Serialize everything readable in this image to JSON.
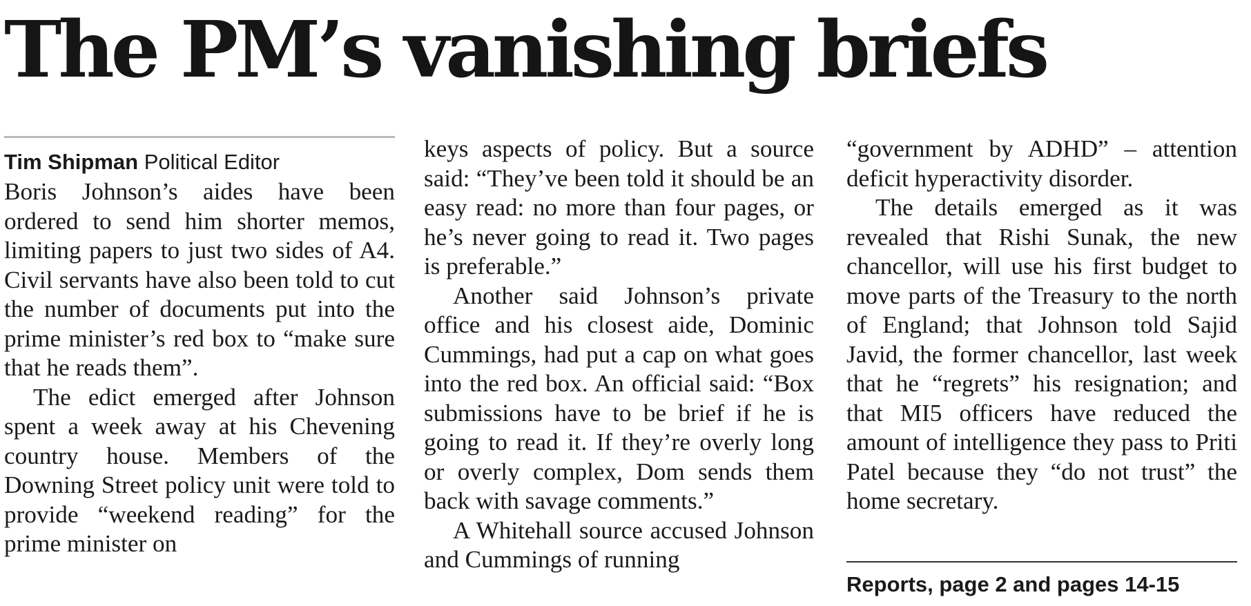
{
  "article": {
    "headline": "The PM’s vanishing briefs",
    "byline_name": "Tim Shipman",
    "byline_role": "Political Editor",
    "columns": [
      {
        "paragraphs": [
          "Boris Johnson’s aides have been ordered to send him shorter memos, limiting papers to just two sides of A4. Civil servants have also been told to cut the number of documents put into the prime minister’s red box to “make sure that he reads them”.",
          "The edict emerged after Johnson spent a week away at his Chevening country house. Members of the Downing Street policy unit were told to provide “weekend reading” for the prime minister on"
        ]
      },
      {
        "paragraphs": [
          "keys aspects of policy. But a source said: “They’ve been told it should be an easy read: no more than four pages, or he’s never going to read it. Two pages is preferable.”",
          "Another said Johnson’s private office and his closest aide, Dominic Cummings, had put a cap on what goes into the red box. An official said: “Box submissions have to be brief if he is going to read it. If they’re overly long or overly complex, Dom sends them back with savage comments.”",
          "A Whitehall source accused Johnson and Cummings of running"
        ]
      },
      {
        "paragraphs": [
          "“government by ADHD” – attention deficit hyperactivity disorder.",
          "The details emerged as it was revealed that Rishi Sunak, the new chancellor, will use his first budget to move parts of the Treasury to the north of England; that Johnson told Sajid Javid, the former chancellor, last week that he “regrets” his resignation; and that MI5 officers have reduced the amount of intelligence they pass to Priti Patel because they “do not trust” the home secretary."
        ]
      }
    ],
    "footer_ref": "Reports, page 2 and pages 14-15"
  }
}
